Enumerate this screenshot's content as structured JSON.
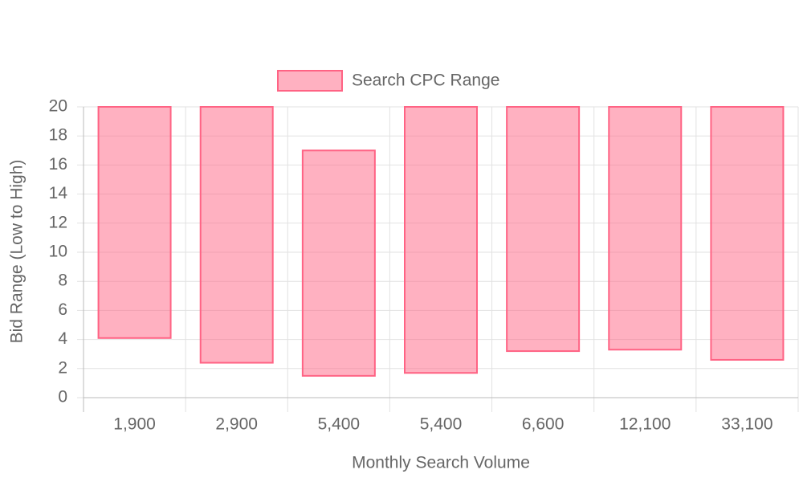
{
  "chart_data": {
    "type": "floating-bar",
    "categories": [
      "1,900",
      "2,900",
      "5,400",
      "5,400",
      "6,600",
      "12,100",
      "33,100"
    ],
    "series": [
      {
        "name": "Search CPC Range",
        "color": "#ff6384",
        "low": [
          4.1,
          2.4,
          1.5,
          1.7,
          3.2,
          3.3,
          2.6
        ],
        "high": [
          20,
          20,
          17,
          20,
          20,
          20,
          20
        ]
      }
    ],
    "ylim": [
      0,
      20
    ],
    "yticks": [
      0,
      2,
      4,
      6,
      8,
      10,
      12,
      14,
      16,
      18,
      20
    ],
    "y_label": "Bid Range (Low to High)",
    "x_label": "Monthly Search Volume",
    "grid": true,
    "legend": "top"
  }
}
